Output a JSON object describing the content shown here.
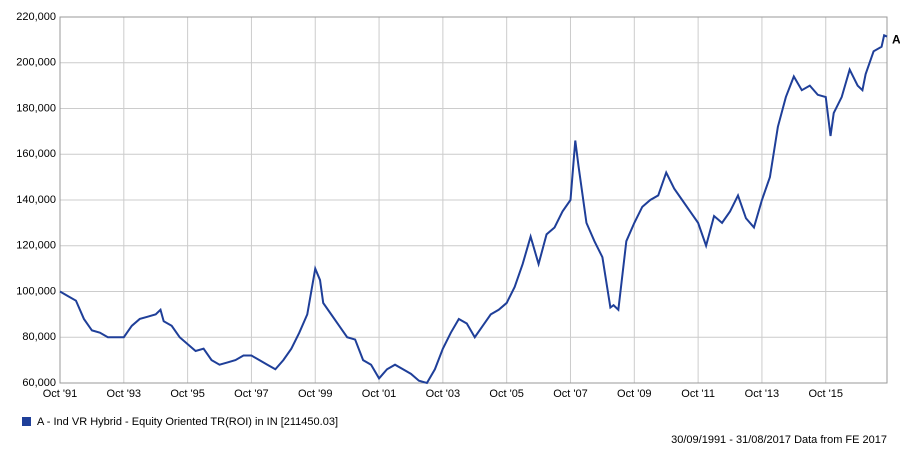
{
  "chart_data": {
    "type": "line",
    "x": [
      1991.75,
      1992.0,
      1992.25,
      1992.5,
      1992.75,
      1993.0,
      1993.25,
      1993.5,
      1993.75,
      1994.0,
      1994.25,
      1994.5,
      1994.75,
      1994.9,
      1995.0,
      1995.25,
      1995.5,
      1995.75,
      1996.0,
      1996.25,
      1996.5,
      1996.75,
      1997.0,
      1997.25,
      1997.5,
      1997.75,
      1998.0,
      1998.25,
      1998.5,
      1998.75,
      1999.0,
      1999.25,
      1999.5,
      1999.75,
      1999.9,
      2000.0,
      2000.25,
      2000.5,
      2000.75,
      2001.0,
      2001.25,
      2001.5,
      2001.75,
      2002.0,
      2002.25,
      2002.5,
      2002.75,
      2003.0,
      2003.25,
      2003.5,
      2003.75,
      2004.0,
      2004.25,
      2004.5,
      2004.75,
      2005.0,
      2005.25,
      2005.5,
      2005.75,
      2006.0,
      2006.25,
      2006.5,
      2006.75,
      2007.0,
      2007.25,
      2007.5,
      2007.75,
      2007.9,
      2008.0,
      2008.25,
      2008.5,
      2008.75,
      2009.0,
      2009.1,
      2009.25,
      2009.5,
      2009.75,
      2010.0,
      2010.25,
      2010.5,
      2010.75,
      2011.0,
      2011.25,
      2011.5,
      2011.75,
      2012.0,
      2012.25,
      2012.5,
      2012.75,
      2013.0,
      2013.25,
      2013.5,
      2013.75,
      2014.0,
      2014.25,
      2014.5,
      2014.75,
      2015.0,
      2015.25,
      2015.5,
      2015.75,
      2015.9,
      2016.0,
      2016.25,
      2016.5,
      2016.75,
      2016.9,
      2017.0,
      2017.25,
      2017.5,
      2017.58,
      2017.67
    ],
    "series": [
      {
        "name": "A - Ind VR Hybrid - Equity Oriented TR(ROI) in IN [211450.03]",
        "marker": "A",
        "color": "#1f3f99",
        "values": [
          100000,
          98000,
          96000,
          88000,
          83000,
          82000,
          80000,
          80000,
          80000,
          85000,
          88000,
          89000,
          90000,
          92000,
          87000,
          85000,
          80000,
          77000,
          74000,
          75000,
          70000,
          68000,
          69000,
          70000,
          72000,
          72000,
          70000,
          68000,
          66000,
          70000,
          75000,
          82000,
          90000,
          110000,
          105000,
          95000,
          90000,
          85000,
          80000,
          79000,
          70000,
          68000,
          62000,
          66000,
          68000,
          66000,
          64000,
          61000,
          60000,
          66000,
          75000,
          82000,
          88000,
          86000,
          80000,
          85000,
          90000,
          92000,
          95000,
          102000,
          112000,
          124000,
          112000,
          125000,
          128000,
          135000,
          140000,
          166000,
          155000,
          130000,
          122000,
          115000,
          93000,
          94000,
          92000,
          122000,
          130000,
          137000,
          140000,
          142000,
          152000,
          145000,
          140000,
          135000,
          130000,
          120000,
          133000,
          130000,
          135000,
          142000,
          132000,
          128000,
          140000,
          150000,
          172000,
          185000,
          194000,
          188000,
          190000,
          186000,
          185000,
          168000,
          178000,
          185000,
          197000,
          190000,
          188000,
          195000,
          205000,
          207000,
          212000,
          211450.03
        ]
      }
    ],
    "xlim": [
      1991.75,
      2017.67
    ],
    "xticks": [
      {
        "value": 1991.75,
        "label": "Oct '91"
      },
      {
        "value": 1993.75,
        "label": "Oct '93"
      },
      {
        "value": 1995.75,
        "label": "Oct '95"
      },
      {
        "value": 1997.75,
        "label": "Oct '97"
      },
      {
        "value": 1999.75,
        "label": "Oct '99"
      },
      {
        "value": 2001.75,
        "label": "Oct '01"
      },
      {
        "value": 2003.75,
        "label": "Oct '03"
      },
      {
        "value": 2005.75,
        "label": "Oct '05"
      },
      {
        "value": 2007.75,
        "label": "Oct '07"
      },
      {
        "value": 2009.75,
        "label": "Oct '09"
      },
      {
        "value": 2011.75,
        "label": "Oct '11"
      },
      {
        "value": 2013.75,
        "label": "Oct '13"
      },
      {
        "value": 2015.75,
        "label": "Oct '15"
      }
    ],
    "ylim": [
      60000,
      220000
    ],
    "yticks": [
      {
        "value": 60000,
        "label": "60,000"
      },
      {
        "value": 80000,
        "label": "80,000"
      },
      {
        "value": 100000,
        "label": "100,000"
      },
      {
        "value": 120000,
        "label": "120,000"
      },
      {
        "value": 140000,
        "label": "140,000"
      },
      {
        "value": 160000,
        "label": "160,000"
      },
      {
        "value": 180000,
        "label": "180,000"
      },
      {
        "value": 200000,
        "label": "200,000"
      },
      {
        "value": 220000,
        "label": "220,000"
      }
    ],
    "grid": true,
    "footnote": "30/09/1991 - 31/08/2017 Data from FE 2017"
  }
}
